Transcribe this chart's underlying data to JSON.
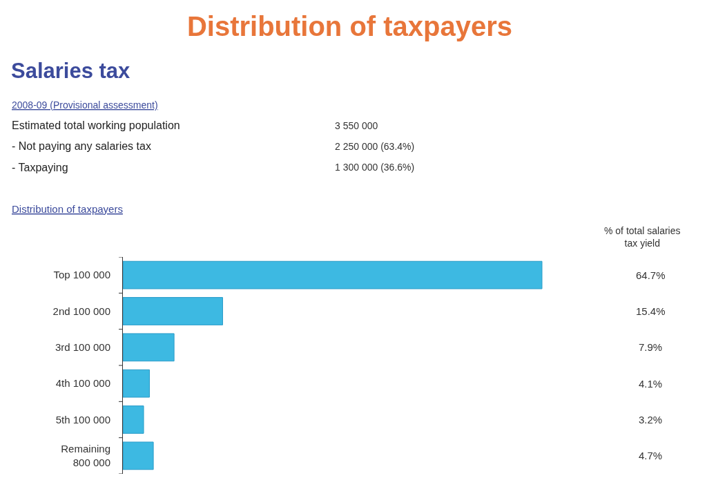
{
  "chart_data": {
    "type": "bar",
    "orientation": "horizontal",
    "title": "Distribution of taxpayers",
    "subtitle": "Salaries tax",
    "categories": [
      "Top 100 000",
      "2nd 100 000",
      "3rd 100 000",
      "4th 100 000",
      "5th 100 000",
      "Remaining\n800 000"
    ],
    "values": [
      64.7,
      15.4,
      7.9,
      4.1,
      3.2,
      4.7
    ],
    "value_labels": [
      "64.7%",
      "15.4%",
      "7.9%",
      "4.1%",
      "3.2%",
      "4.7%"
    ],
    "color": "#3db9e2",
    "tick_labels": "y",
    "grid": false,
    "legend": false,
    "annotations": [
      "2008-09 (Provisional assessment)",
      "Estimated total working population",
      "3 550 000",
      "- Not paying any salaries tax",
      "2 250 000 (63.4%)",
      "- Taxpaying",
      "1 300 000 (36.6%)",
      "Distribution of taxpayers",
      "% of total salaries\ntax yield"
    ]
  }
}
